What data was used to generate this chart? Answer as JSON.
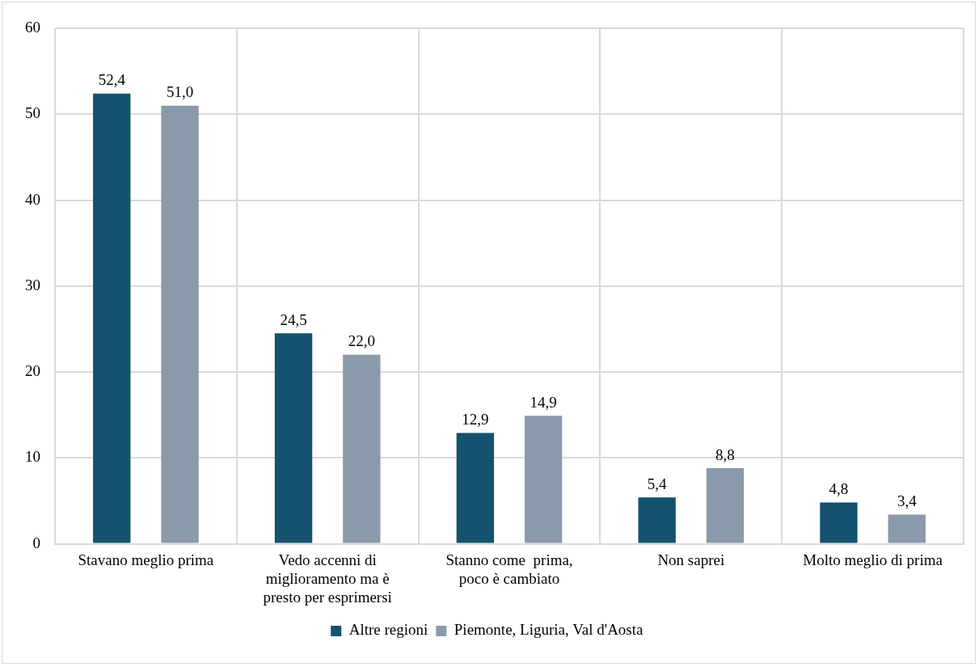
{
  "chart_data": {
    "type": "bar",
    "categories": [
      "Stavano meglio prima",
      "Vedo accenni di miglioramento ma è presto per esprimersi",
      "Stanno come  prima, poco è cambiato",
      "Non saprei",
      "Molto meglio di prima"
    ],
    "series": [
      {
        "name": "Altre regioni",
        "color": "#145270",
        "values": [
          52.4,
          24.5,
          12.9,
          5.4,
          4.8
        ],
        "value_labels": [
          "52,4",
          "24,5",
          "12,9",
          "5,4",
          "4,8"
        ]
      },
      {
        "name": "Piemonte, Liguria, Val d'Aosta",
        "color": "#8a9aab",
        "values": [
          51.0,
          22.0,
          14.9,
          8.8,
          3.4
        ],
        "value_labels": [
          "51,0",
          "22,0",
          "14,9",
          "8,8",
          "3,4"
        ]
      }
    ],
    "ylim": [
      0,
      60
    ],
    "yticks": [
      0,
      10,
      20,
      30,
      40,
      50,
      60
    ],
    "grid": true,
    "legend": "bottom"
  }
}
